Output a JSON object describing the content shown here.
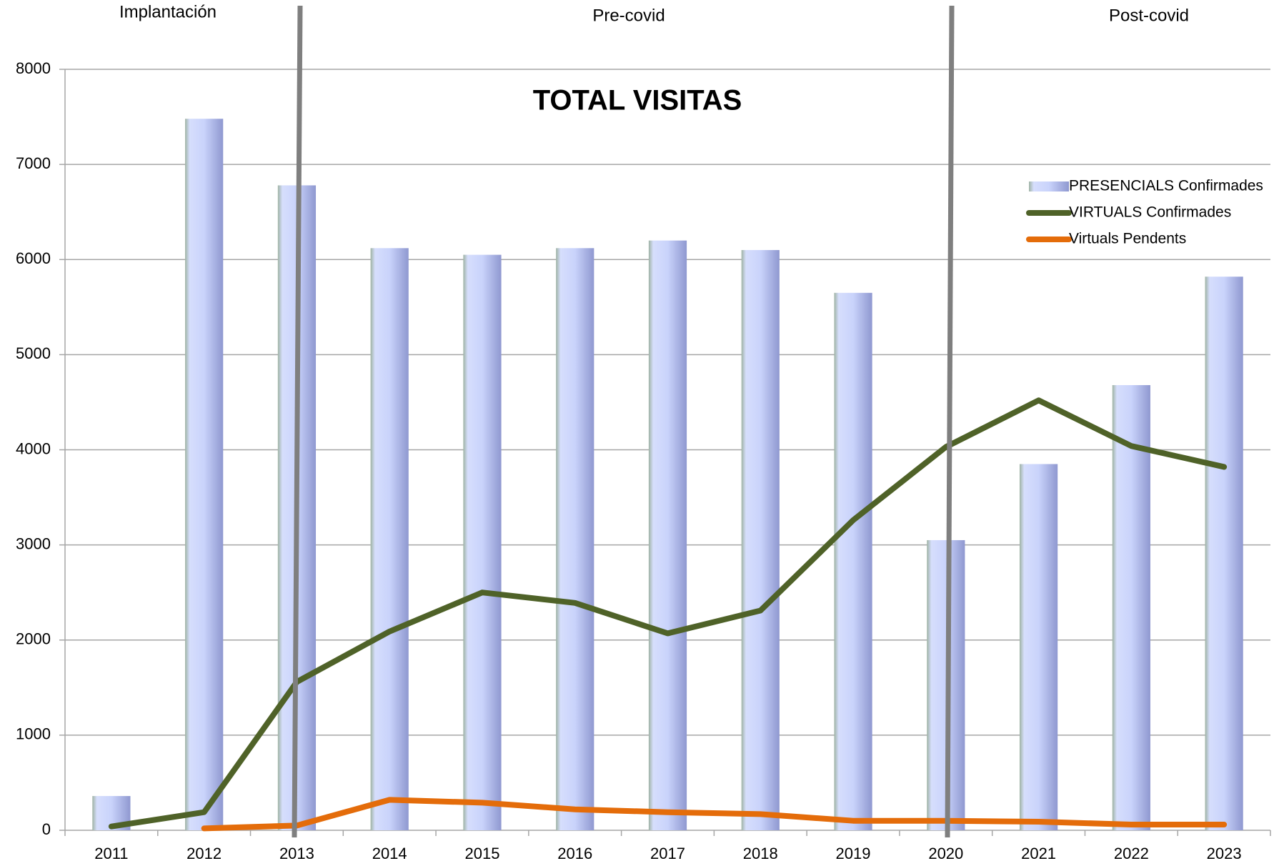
{
  "chart_data": {
    "type": "bar",
    "title": "TOTAL VISITAS",
    "annotations": [
      "Implantación",
      "Pre-covid",
      "Post-covid"
    ],
    "categories": [
      "2011",
      "2012",
      "2013",
      "2014",
      "2015",
      "2016",
      "2017",
      "2018",
      "2019",
      "2020",
      "2021",
      "2022",
      "2023"
    ],
    "series": [
      {
        "name": "PRESENCIALS Confirmades",
        "type": "bar",
        "color": "#c9d3fb",
        "values": [
          360,
          7480,
          6780,
          6120,
          6050,
          6120,
          6200,
          6100,
          5650,
          3050,
          3850,
          4680,
          5820
        ]
      },
      {
        "name": "VIRTUALS Confirmades",
        "type": "line",
        "color": "#4f6228",
        "values": [
          40,
          190,
          1560,
          2090,
          2500,
          2390,
          2070,
          2310,
          3260,
          4030,
          4520,
          4040,
          3820
        ]
      },
      {
        "name": "Virtuals Pendents",
        "type": "line",
        "color": "#e46c0a",
        "values": [
          null,
          20,
          50,
          320,
          290,
          220,
          190,
          170,
          100,
          100,
          90,
          60,
          60
        ]
      }
    ],
    "ylim": [
      0,
      8000
    ],
    "yticks": [
      0,
      1000,
      2000,
      3000,
      4000,
      5000,
      6000,
      7000,
      8000
    ],
    "grid": true,
    "legend": "upper right"
  }
}
